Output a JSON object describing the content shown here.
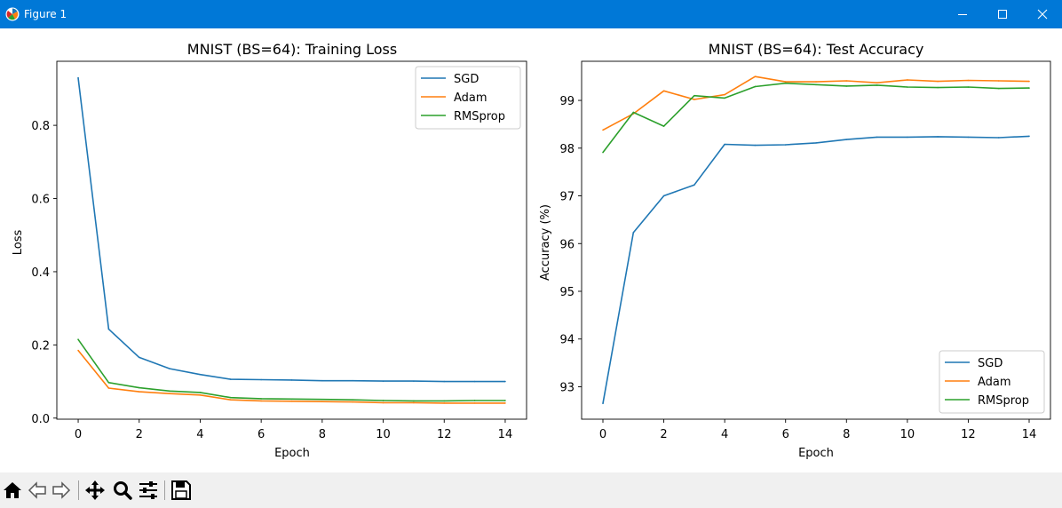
{
  "window": {
    "title": "Figure 1",
    "icons": {
      "app": "matplotlib-icon",
      "minimize": "minimize-icon",
      "maximize": "maximize-icon",
      "close": "close-icon"
    },
    "titlebar_color": "#0078d7"
  },
  "toolbar": {
    "buttons": [
      {
        "name": "home",
        "icon": "home-icon"
      },
      {
        "name": "back",
        "icon": "back-arrow-icon"
      },
      {
        "name": "forward",
        "icon": "forward-arrow-icon"
      },
      {
        "name": "pan",
        "icon": "pan-icon"
      },
      {
        "name": "zoom",
        "icon": "zoom-icon"
      },
      {
        "name": "configure-subplots",
        "icon": "sliders-icon"
      },
      {
        "name": "save",
        "icon": "save-icon"
      }
    ]
  },
  "chart_data": [
    {
      "type": "line",
      "title": "MNIST (BS=64): Training Loss",
      "xlabel": "Epoch",
      "ylabel": "Loss",
      "x": [
        0,
        1,
        2,
        3,
        4,
        5,
        6,
        7,
        8,
        9,
        10,
        11,
        12,
        13,
        14
      ],
      "xlim": [
        -0.7,
        14.7
      ],
      "ylim": [
        -0.003,
        0.975
      ],
      "xticks": [
        0,
        2,
        4,
        6,
        8,
        10,
        12,
        14
      ],
      "yticks": [
        0.0,
        0.2,
        0.4,
        0.6,
        0.8
      ],
      "ytick_labels": [
        "0.0",
        "0.2",
        "0.4",
        "0.6",
        "0.8"
      ],
      "legend_position": "upper right",
      "grid": false,
      "series": [
        {
          "name": "SGD",
          "color": "#1f77b4",
          "values": [
            0.93,
            0.243,
            0.166,
            0.135,
            0.119,
            0.106,
            0.105,
            0.104,
            0.102,
            0.102,
            0.101,
            0.101,
            0.1,
            0.1,
            0.1
          ]
        },
        {
          "name": "Adam",
          "color": "#ff7f0e",
          "values": [
            0.185,
            0.082,
            0.072,
            0.067,
            0.063,
            0.05,
            0.047,
            0.046,
            0.045,
            0.044,
            0.042,
            0.042,
            0.041,
            0.041,
            0.041
          ]
        },
        {
          "name": "RMSprop",
          "color": "#2ca02c",
          "values": [
            0.215,
            0.097,
            0.083,
            0.074,
            0.07,
            0.056,
            0.053,
            0.052,
            0.051,
            0.05,
            0.048,
            0.047,
            0.047,
            0.048,
            0.048
          ]
        }
      ]
    },
    {
      "type": "line",
      "title": "MNIST (BS=64): Test Accuracy",
      "xlabel": "Epoch",
      "ylabel": "Accuracy (%)",
      "x": [
        0,
        1,
        2,
        3,
        4,
        5,
        6,
        7,
        8,
        9,
        10,
        11,
        12,
        13,
        14
      ],
      "xlim": [
        -0.7,
        14.7
      ],
      "ylim": [
        92.32,
        99.82
      ],
      "xticks": [
        0,
        2,
        4,
        6,
        8,
        10,
        12,
        14
      ],
      "yticks": [
        93,
        94,
        95,
        96,
        97,
        98,
        99
      ],
      "ytick_labels": [
        "93",
        "94",
        "95",
        "96",
        "97",
        "98",
        "99"
      ],
      "legend_position": "lower right",
      "grid": false,
      "series": [
        {
          "name": "SGD",
          "color": "#1f77b4",
          "values": [
            92.65,
            96.23,
            97.0,
            97.23,
            98.08,
            98.06,
            98.07,
            98.11,
            98.18,
            98.23,
            98.23,
            98.24,
            98.23,
            98.22,
            98.25
          ]
        },
        {
          "name": "Adam",
          "color": "#ff7f0e",
          "values": [
            98.38,
            98.72,
            99.2,
            99.02,
            99.12,
            99.5,
            99.39,
            99.39,
            99.41,
            99.37,
            99.43,
            99.4,
            99.42,
            99.41,
            99.4
          ]
        },
        {
          "name": "RMSprop",
          "color": "#2ca02c",
          "values": [
            97.91,
            98.75,
            98.46,
            99.1,
            99.05,
            99.29,
            99.36,
            99.33,
            99.3,
            99.32,
            99.28,
            99.27,
            99.28,
            99.25,
            99.26
          ]
        }
      ]
    }
  ]
}
